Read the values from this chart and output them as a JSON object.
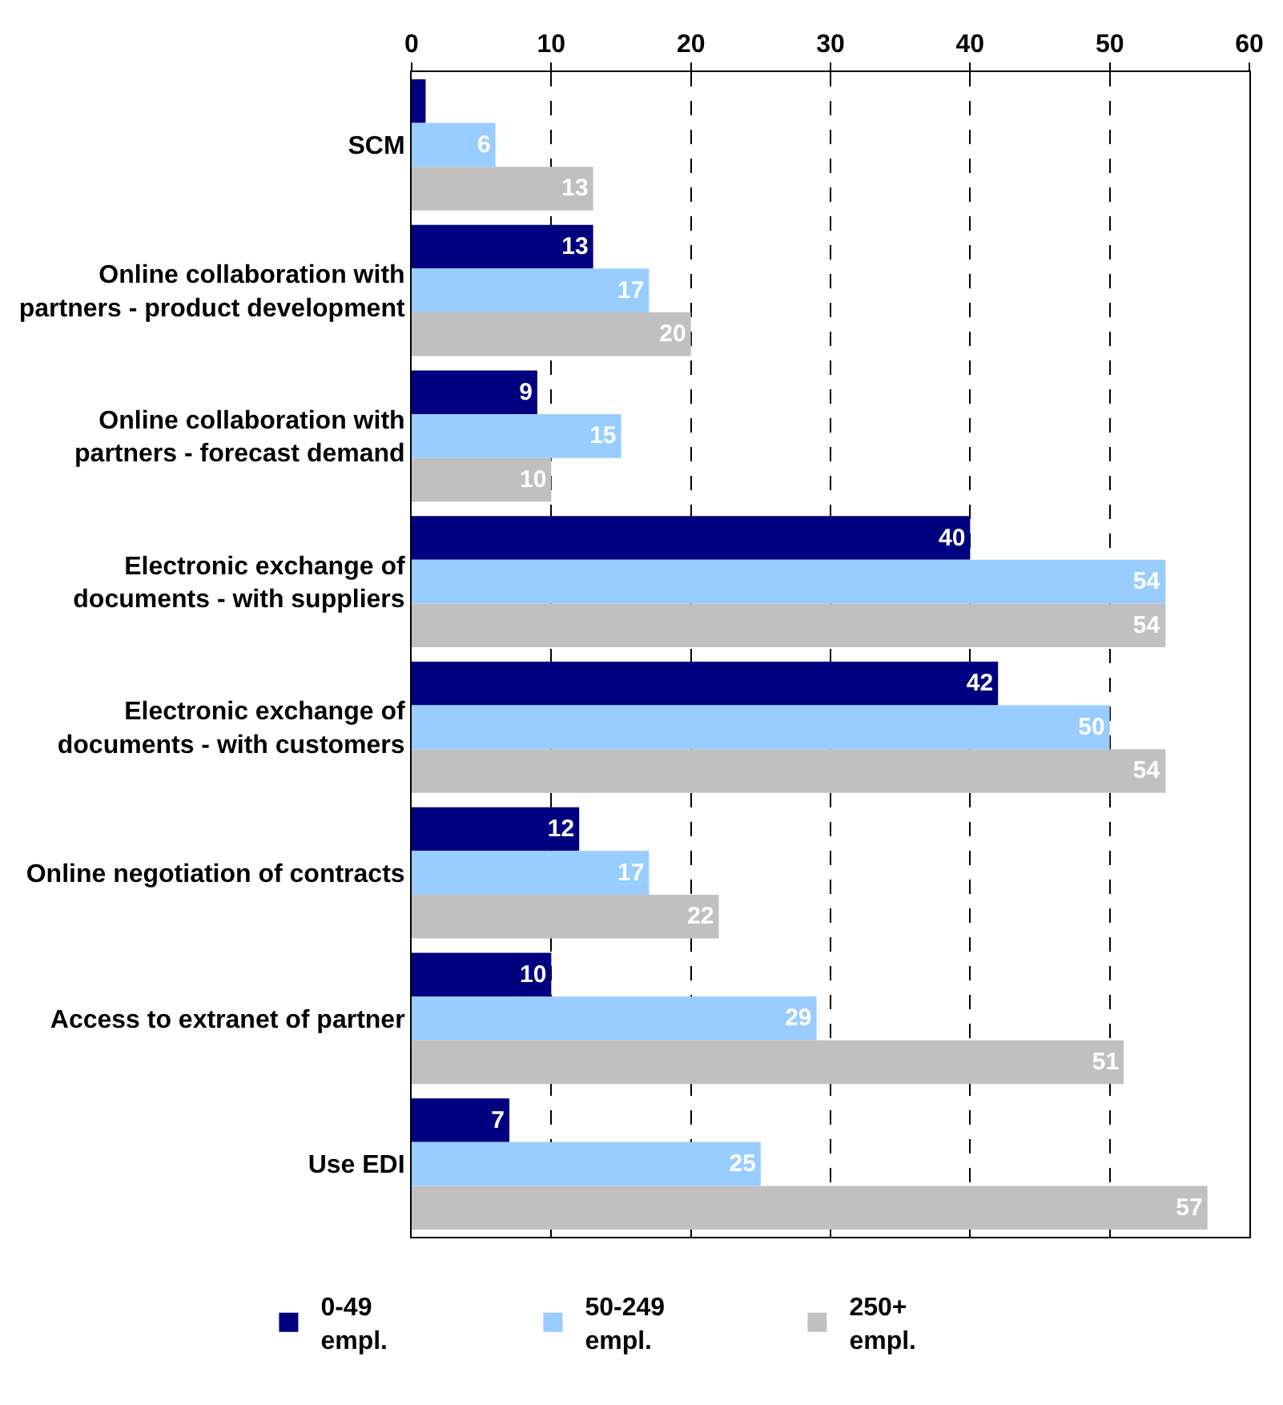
{
  "chart_data": {
    "type": "bar",
    "orientation": "horizontal",
    "categories": [
      "SCM",
      "Online collaboration with\npartners - product development",
      "Online collaboration with\npartners - forecast demand",
      "Electronic exchange of\ndocuments - with suppliers",
      "Electronic exchange of\ndocuments - with customers",
      "Online negotiation of contracts",
      "Access to extranet of partner",
      "Use EDI"
    ],
    "series": [
      {
        "name": "0-49\nempl.",
        "color": "#000080",
        "values": [
          1,
          13,
          9,
          40,
          42,
          12,
          10,
          7
        ],
        "value_labels": [
          null,
          "13",
          "9",
          "40",
          "42",
          "12",
          "10",
          "7"
        ]
      },
      {
        "name": "50-249\nempl.",
        "color": "#99ccff",
        "values": [
          6,
          17,
          15,
          54,
          50,
          17,
          29,
          25
        ],
        "value_labels": [
          "6",
          "17",
          "15",
          "54",
          "50",
          "17",
          "29",
          "25"
        ]
      },
      {
        "name": "250+\nempl.",
        "color": "#c0c0c0",
        "values": [
          13,
          20,
          10,
          54,
          54,
          22,
          51,
          57
        ],
        "value_labels": [
          "13",
          "20",
          "10",
          "54",
          "54",
          "22",
          "51",
          "57"
        ]
      }
    ],
    "xlim": [
      0,
      60
    ],
    "xticks": [
      0,
      10,
      20,
      30,
      40,
      50,
      60
    ],
    "grid": "x",
    "legend": "bottom"
  }
}
